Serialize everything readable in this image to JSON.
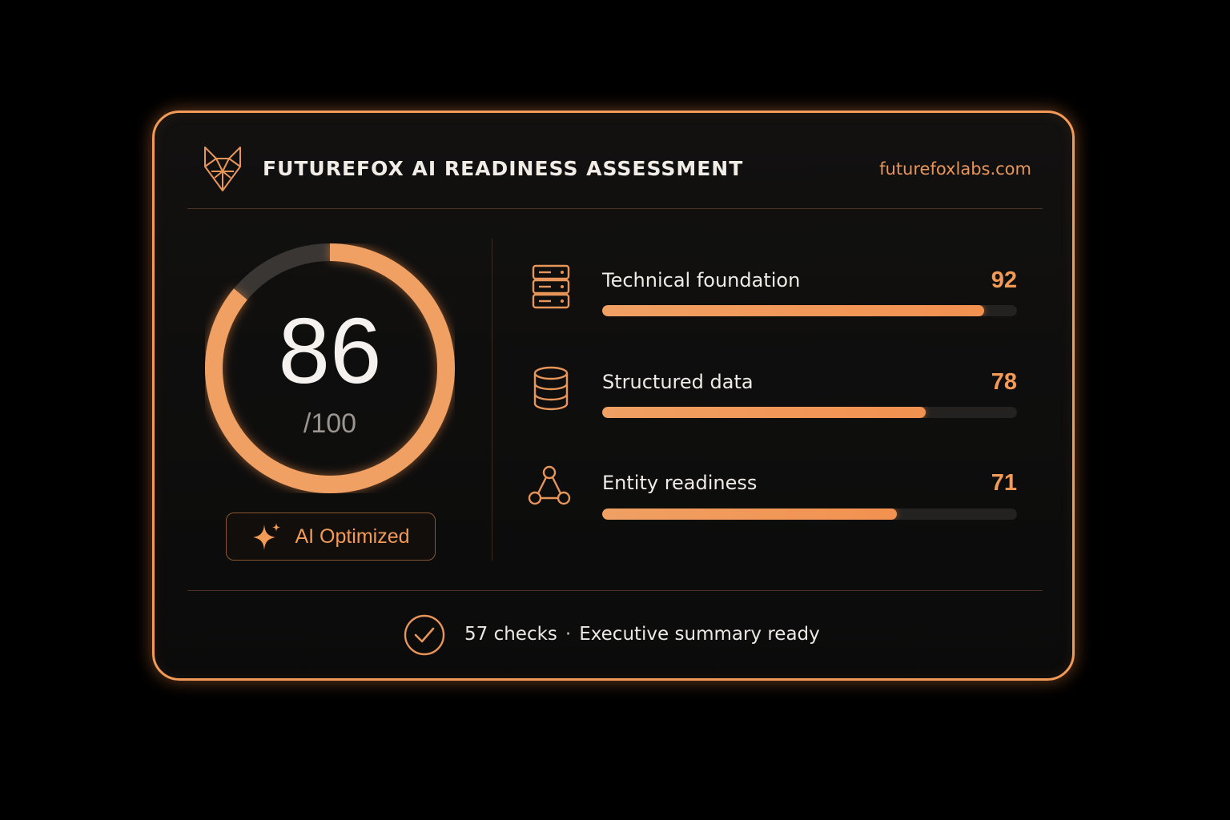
{
  "header": {
    "logo_icon": "fox-logo-icon",
    "title": "FUTUREFOX AI READINESS ASSESSMENT",
    "site": "futurefoxlabs.com"
  },
  "score": {
    "value": "86",
    "max_label": "/100",
    "fraction": 0.86
  },
  "badge": {
    "icon": "sparkle-icon",
    "label": "AI Optimized"
  },
  "metrics": [
    {
      "icon": "server-icon",
      "label": "Technical foundation",
      "value": "92",
      "fraction": 0.92
    },
    {
      "icon": "database-icon",
      "label": "Structured data",
      "value": "78",
      "fraction": 0.78
    },
    {
      "icon": "network-nodes-icon",
      "label": "Entity readiness",
      "value": "71",
      "fraction": 0.71
    }
  ],
  "footer": {
    "icon": "check-circle-icon",
    "checks": "57 checks",
    "separator": "·",
    "status": "Executive summary ready"
  },
  "colors": {
    "accent": "#f29a56",
    "background": "#000000",
    "card": "#0e0d0c",
    "track": "#242220",
    "gauge_remainder": "#3a3633"
  }
}
